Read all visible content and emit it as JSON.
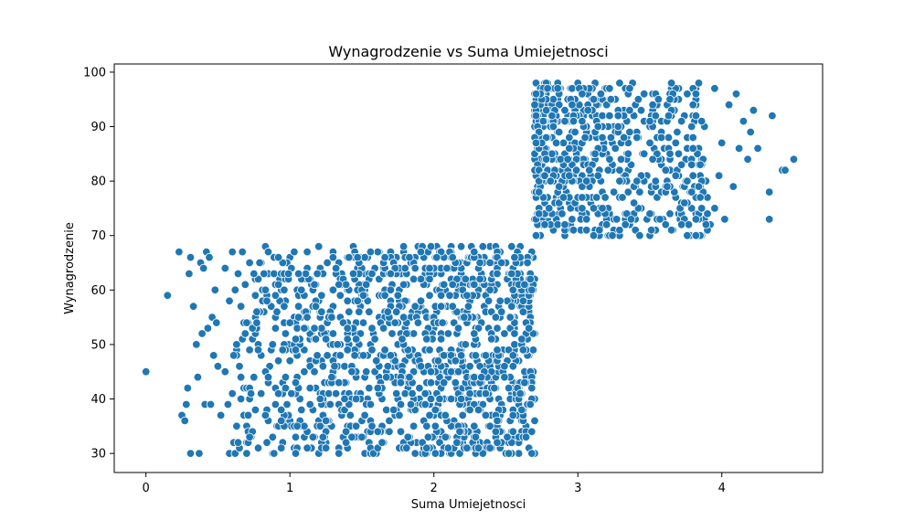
{
  "chart_data": {
    "type": "scatter",
    "title": "Wynagrodzenie vs Suma Umiejetnosci",
    "xlabel": "Suma Umiejetnosci",
    "ylabel": "Wynagrodzenie",
    "xlim": [
      -0.22,
      4.7
    ],
    "ylim": [
      26.5,
      101.5
    ],
    "xticks": [
      0,
      1,
      2,
      3,
      4
    ],
    "yticks": [
      30,
      40,
      50,
      60,
      70,
      80,
      90,
      100
    ],
    "grid": false,
    "marker_color": "#1f77b4",
    "clusters": [
      {
        "x_min": 0.6,
        "x_max": 2.7,
        "y_min": 30,
        "y_max": 68
      },
      {
        "x_min": 2.7,
        "x_max": 3.9,
        "y_min": 70,
        "y_max": 98
      }
    ],
    "series": [
      {
        "points": [
          [
            0.0,
            45
          ],
          [
            0.15,
            59
          ],
          [
            0.23,
            67
          ],
          [
            0.25,
            37
          ],
          [
            0.27,
            36
          ],
          [
            0.28,
            39
          ],
          [
            0.29,
            42
          ],
          [
            0.3,
            63
          ],
          [
            0.31,
            66
          ],
          [
            0.31,
            30
          ],
          [
            0.33,
            57
          ],
          [
            0.35,
            50
          ],
          [
            0.36,
            44
          ],
          [
            0.37,
            30
          ],
          [
            0.38,
            65
          ],
          [
            0.39,
            52
          ],
          [
            0.4,
            64
          ],
          [
            0.41,
            39
          ],
          [
            0.42,
            67
          ],
          [
            0.43,
            53
          ],
          [
            0.44,
            66
          ],
          [
            0.45,
            39
          ],
          [
            0.46,
            55
          ],
          [
            0.47,
            48
          ],
          [
            0.48,
            60
          ],
          [
            0.49,
            54
          ],
          [
            0.5,
            46
          ],
          [
            0.52,
            37
          ],
          [
            0.55,
            64
          ],
          [
            0.55,
            45
          ],
          [
            0.57,
            39
          ],
          [
            0.58,
            30
          ],
          [
            0.58,
            58
          ],
          [
            0.6,
            41
          ],
          [
            0.6,
            67
          ],
          [
            0.61,
            32
          ],
          [
            0.62,
            60
          ],
          [
            0.62,
            30
          ],
          [
            0.63,
            49
          ],
          [
            0.64,
            63
          ],
          [
            0.65,
            46
          ],
          [
            0.66,
            40
          ],
          [
            0.66,
            57
          ],
          [
            0.67,
            67
          ],
          [
            0.68,
            37
          ],
          [
            0.68,
            54
          ],
          [
            0.69,
            61
          ],
          [
            0.7,
            30
          ],
          [
            0.72,
            65
          ],
          [
            0.73,
            33
          ],
          [
            0.74,
            51
          ],
          [
            0.75,
            44
          ],
          [
            0.76,
            59
          ],
          [
            0.78,
            31
          ],
          [
            0.8,
            41
          ],
          [
            0.82,
            56
          ],
          [
            0.84,
            38
          ],
          [
            0.85,
            63
          ],
          [
            0.86,
            46
          ],
          [
            0.88,
            30
          ],
          [
            0.9,
            53
          ],
          [
            0.91,
            35
          ],
          [
            0.93,
            62
          ],
          [
            0.95,
            43
          ],
          [
            0.97,
            58
          ],
          [
            0.98,
            36
          ],
          [
            1.0,
            66
          ],
          [
            1.02,
            49
          ],
          [
            1.03,
            31
          ],
          [
            1.05,
            60
          ],
          [
            1.07,
            40
          ],
          [
            1.08,
            55
          ],
          [
            1.1,
            33
          ],
          [
            1.12,
            67
          ],
          [
            1.14,
            47
          ],
          [
            1.16,
            38
          ],
          [
            1.18,
            61
          ],
          [
            1.2,
            30
          ],
          [
            1.22,
            52
          ],
          [
            1.24,
            43
          ],
          [
            1.26,
            65
          ],
          [
            1.28,
            35
          ],
          [
            1.3,
            57
          ],
          [
            1.32,
            46
          ],
          [
            1.34,
            31
          ],
          [
            1.36,
            63
          ],
          [
            1.38,
            41
          ],
          [
            1.4,
            54
          ],
          [
            1.42,
            37
          ],
          [
            1.44,
            68
          ],
          [
            1.46,
            49
          ],
          [
            1.48,
            33
          ],
          [
            1.5,
            59
          ],
          [
            1.52,
            44
          ],
          [
            1.54,
            66
          ],
          [
            1.56,
            36
          ],
          [
            1.58,
            52
          ],
          [
            1.6,
            30
          ],
          [
            1.62,
            62
          ],
          [
            1.64,
            40
          ],
          [
            1.66,
            56
          ],
          [
            1.68,
            34
          ],
          [
            1.7,
            67
          ],
          [
            1.72,
            47
          ],
          [
            1.74,
            38
          ],
          [
            1.76,
            60
          ],
          [
            1.78,
            31
          ],
          [
            1.8,
            53
          ],
          [
            1.82,
            43
          ],
          [
            1.84,
            65
          ],
          [
            1.86,
            35
          ],
          [
            1.88,
            57
          ],
          [
            1.9,
            46
          ],
          [
            1.92,
            30
          ],
          [
            1.94,
            63
          ],
          [
            1.96,
            41
          ],
          [
            1.98,
            55
          ],
          [
            2.0,
            37
          ],
          [
            2.02,
            68
          ],
          [
            2.04,
            49
          ],
          [
            2.06,
            33
          ],
          [
            2.08,
            60
          ],
          [
            2.1,
            44
          ],
          [
            2.12,
            66
          ],
          [
            2.14,
            36
          ],
          [
            2.16,
            52
          ],
          [
            2.18,
            30
          ],
          [
            2.2,
            62
          ],
          [
            2.22,
            40
          ],
          [
            2.24,
            57
          ],
          [
            2.26,
            34
          ],
          [
            2.28,
            67
          ],
          [
            2.3,
            47
          ],
          [
            2.32,
            38
          ],
          [
            2.34,
            61
          ],
          [
            2.36,
            31
          ],
          [
            2.38,
            53
          ],
          [
            2.4,
            43
          ],
          [
            2.42,
            65
          ],
          [
            2.44,
            35
          ],
          [
            2.46,
            58
          ],
          [
            2.48,
            46
          ],
          [
            2.5,
            30
          ],
          [
            2.52,
            63
          ],
          [
            2.54,
            41
          ],
          [
            2.56,
            55
          ],
          [
            2.58,
            37
          ],
          [
            2.6,
            68
          ],
          [
            2.62,
            49
          ],
          [
            2.64,
            33
          ],
          [
            2.66,
            60
          ],
          [
            2.68,
            44
          ],
          [
            2.69,
            66
          ],
          [
            2.7,
            36
          ],
          [
            2.7,
            52
          ],
          [
            2.7,
            30
          ],
          [
            2.7,
            62
          ],
          [
            2.7,
            40
          ],
          [
            1.45,
            58
          ],
          [
            1.55,
            42
          ],
          [
            1.65,
            64
          ],
          [
            1.75,
            50
          ],
          [
            1.85,
            39
          ],
          [
            1.95,
            61
          ],
          [
            2.05,
            45
          ],
          [
            2.15,
            35
          ],
          [
            2.25,
            59
          ],
          [
            2.35,
            48
          ],
          [
            2.45,
            40
          ],
          [
            2.55,
            64
          ],
          [
            2.65,
            51
          ],
          [
            1.5,
            36
          ],
          [
            1.6,
            47
          ],
          [
            1.7,
            58
          ],
          [
            1.8,
            32
          ],
          [
            1.9,
            42
          ],
          [
            2.0,
            53
          ],
          [
            2.1,
            64
          ],
          [
            2.2,
            37
          ],
          [
            2.3,
            50
          ],
          [
            2.4,
            31
          ],
          [
            2.5,
            44
          ],
          [
            2.6,
            57
          ],
          [
            1.4,
            31
          ],
          [
            1.3,
            44
          ],
          [
            1.2,
            58
          ],
          [
            1.1,
            45
          ],
          [
            1.0,
            36
          ],
          [
            0.9,
            61
          ],
          [
            1.15,
            52
          ],
          [
            1.25,
            39
          ],
          [
            1.35,
            50
          ],
          [
            2.71,
            98
          ],
          [
            2.72,
            72
          ],
          [
            2.72,
            79
          ],
          [
            2.73,
            86
          ],
          [
            2.73,
            93
          ],
          [
            2.74,
            70
          ],
          [
            2.75,
            83
          ],
          [
            2.76,
            90
          ],
          [
            2.77,
            76
          ],
          [
            2.78,
            96
          ],
          [
            2.79,
            73
          ],
          [
            2.8,
            88
          ],
          [
            2.81,
            80
          ],
          [
            2.82,
            94
          ],
          [
            2.83,
            71
          ],
          [
            2.84,
            85
          ],
          [
            2.85,
            77
          ],
          [
            2.86,
            91
          ],
          [
            2.87,
            74
          ],
          [
            2.88,
            97
          ],
          [
            2.89,
            82
          ],
          [
            2.9,
            87
          ],
          [
            2.91,
            70
          ],
          [
            2.92,
            78
          ],
          [
            2.93,
            95
          ],
          [
            2.94,
            84
          ],
          [
            2.95,
            72
          ],
          [
            2.96,
            89
          ],
          [
            2.97,
            81
          ],
          [
            2.98,
            93
          ],
          [
            2.99,
            75
          ],
          [
            3.0,
            98
          ],
          [
            3.01,
            86
          ],
          [
            3.02,
            71
          ],
          [
            3.03,
            79
          ],
          [
            3.04,
            92
          ],
          [
            3.05,
            84
          ],
          [
            3.06,
            73
          ],
          [
            3.07,
            96
          ],
          [
            3.08,
            88
          ],
          [
            3.09,
            76
          ],
          [
            3.1,
            83
          ],
          [
            3.12,
            70
          ],
          [
            3.14,
            94
          ],
          [
            3.16,
            80
          ],
          [
            3.18,
            87
          ],
          [
            3.2,
            74
          ],
          [
            3.22,
            97
          ],
          [
            3.24,
            82
          ],
          [
            3.26,
            89
          ],
          [
            3.28,
            71
          ],
          [
            3.3,
            77
          ],
          [
            3.32,
            93
          ],
          [
            3.34,
            85
          ],
          [
            3.36,
            72
          ],
          [
            3.38,
            98
          ],
          [
            3.4,
            79
          ],
          [
            3.42,
            88
          ],
          [
            3.44,
            75
          ],
          [
            3.46,
            91
          ],
          [
            3.48,
            81
          ],
          [
            3.5,
            70
          ],
          [
            3.52,
            96
          ],
          [
            3.54,
            84
          ],
          [
            3.56,
            73
          ],
          [
            3.58,
            89
          ],
          [
            3.6,
            78
          ],
          [
            3.62,
            94
          ],
          [
            3.64,
            82
          ],
          [
            3.66,
            71
          ],
          [
            3.68,
            87
          ],
          [
            3.7,
            97
          ],
          [
            3.72,
            76
          ],
          [
            3.74,
            92
          ],
          [
            3.76,
            80
          ],
          [
            3.78,
            70
          ],
          [
            3.8,
            86
          ],
          [
            3.82,
            95
          ],
          [
            3.84,
            74
          ],
          [
            3.86,
            83
          ],
          [
            3.88,
            90
          ],
          [
            3.9,
            77
          ],
          [
            3.92,
            72
          ],
          [
            3.95,
            97
          ],
          [
            3.98,
            81
          ],
          [
            4.0,
            87
          ],
          [
            4.02,
            73
          ],
          [
            4.05,
            94
          ],
          [
            4.08,
            79
          ],
          [
            4.1,
            96
          ],
          [
            4.12,
            86
          ],
          [
            4.15,
            91
          ],
          [
            4.18,
            84
          ],
          [
            4.2,
            89
          ],
          [
            4.22,
            93
          ],
          [
            4.25,
            86
          ],
          [
            4.33,
            78
          ],
          [
            4.33,
            73
          ],
          [
            4.35,
            92
          ],
          [
            4.42,
            82
          ],
          [
            4.44,
            82
          ],
          [
            4.5,
            84
          ],
          [
            3.3,
            90
          ],
          [
            3.45,
            85
          ],
          [
            3.55,
            77
          ],
          [
            3.65,
            92
          ],
          [
            3.75,
            84
          ],
          [
            3.85,
            79
          ],
          [
            3.95,
            75
          ],
          [
            2.85,
            95
          ],
          [
            2.95,
            80
          ],
          [
            3.05,
            77
          ],
          [
            3.15,
            90
          ],
          [
            3.25,
            73
          ],
          [
            3.35,
            82
          ],
          [
            3.5,
            90
          ],
          [
            3.6,
            86
          ],
          [
            3.7,
            81
          ],
          [
            3.8,
            92
          ],
          [
            3.9,
            71
          ],
          [
            3.4,
            73
          ],
          [
            3.2,
            85
          ],
          [
            3.1,
            92
          ],
          [
            3.0,
            75
          ],
          [
            2.9,
            83
          ]
        ]
      }
    ]
  }
}
